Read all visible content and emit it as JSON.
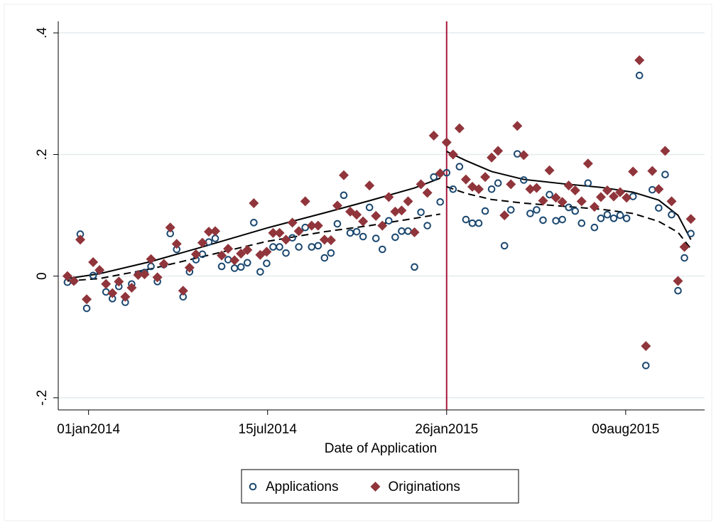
{
  "chart_data": {
    "type": "scatter",
    "x_label": "Date of Application",
    "x": [
      "2013-12-09",
      "2013-12-16",
      "2013-12-23",
      "2013-12-30",
      "2014-01-06",
      "2014-01-13",
      "2014-01-20",
      "2014-01-27",
      "2014-02-03",
      "2014-02-10",
      "2014-02-17",
      "2014-02-24",
      "2014-03-03",
      "2014-03-10",
      "2014-03-17",
      "2014-03-24",
      "2014-03-31",
      "2014-04-07",
      "2014-04-14",
      "2014-04-21",
      "2014-04-28",
      "2014-05-05",
      "2014-05-12",
      "2014-05-19",
      "2014-05-26",
      "2014-06-02",
      "2014-06-09",
      "2014-06-16",
      "2014-06-23",
      "2014-06-30",
      "2014-07-07",
      "2014-07-14",
      "2014-07-21",
      "2014-07-28",
      "2014-08-04",
      "2014-08-11",
      "2014-08-18",
      "2014-08-25",
      "2014-09-01",
      "2014-09-08",
      "2014-09-15",
      "2014-09-22",
      "2014-09-29",
      "2014-10-06",
      "2014-10-13",
      "2014-10-20",
      "2014-10-27",
      "2014-11-03",
      "2014-11-10",
      "2014-11-17",
      "2014-11-24",
      "2014-12-01",
      "2014-12-08",
      "2014-12-15",
      "2014-12-22",
      "2014-12-29",
      "2015-01-05",
      "2015-01-12",
      "2015-01-19",
      "2015-01-26",
      "2015-02-02",
      "2015-02-09",
      "2015-02-16",
      "2015-02-23",
      "2015-03-02",
      "2015-03-09",
      "2015-03-16",
      "2015-03-23",
      "2015-03-30",
      "2015-04-06",
      "2015-04-13",
      "2015-04-20",
      "2015-04-27",
      "2015-05-04",
      "2015-05-11",
      "2015-05-18",
      "2015-05-25",
      "2015-06-01",
      "2015-06-08",
      "2015-06-15",
      "2015-06-22",
      "2015-06-29",
      "2015-07-06",
      "2015-07-13",
      "2015-07-20",
      "2015-07-27",
      "2015-08-03",
      "2015-08-10",
      "2015-08-17",
      "2015-08-24",
      "2015-08-31",
      "2015-09-07",
      "2015-09-14",
      "2015-09-21",
      "2015-09-28",
      "2015-10-05",
      "2015-10-12",
      "2015-10-19"
    ],
    "series": [
      {
        "name": "Applications",
        "color": "#1a476f",
        "marker": "circle",
        "values": [
          -0.01,
          -0.008,
          0.069,
          -0.053,
          0.001,
          0.009,
          -0.026,
          -0.037,
          -0.017,
          -0.043,
          -0.013,
          0.003,
          0.006,
          0.016,
          -0.009,
          0.019,
          0.07,
          0.044,
          -0.034,
          0.007,
          0.027,
          0.036,
          0.056,
          0.062,
          0.016,
          0.027,
          0.013,
          0.015,
          0.022,
          0.088,
          0.007,
          0.021,
          0.048,
          0.048,
          0.038,
          0.063,
          0.048,
          0.08,
          0.048,
          0.05,
          0.03,
          0.038,
          0.086,
          0.133,
          0.071,
          0.073,
          0.065,
          0.113,
          0.062,
          0.044,
          0.091,
          0.064,
          0.074,
          0.074,
          0.015,
          0.105,
          0.083,
          0.163,
          0.122,
          0.17,
          0.143,
          0.18,
          0.093,
          0.087,
          0.087,
          0.107,
          0.143,
          0.153,
          0.05,
          0.109,
          0.201,
          0.158,
          0.103,
          0.109,
          0.092,
          0.134,
          0.091,
          0.093,
          0.113,
          0.107,
          0.087,
          0.153,
          0.08,
          0.095,
          0.101,
          0.095,
          0.1,
          0.095,
          0.131,
          0.33,
          -0.147,
          0.142,
          0.112,
          0.167,
          0.101,
          -0.024,
          0.03,
          0.07
        ]
      },
      {
        "name": "Originations",
        "color": "#90353b",
        "marker": "diamond",
        "values": [
          0.0,
          -0.008,
          0.06,
          -0.038,
          0.023,
          0.01,
          -0.013,
          -0.028,
          -0.009,
          -0.034,
          -0.019,
          0.002,
          0.003,
          0.028,
          -0.002,
          0.02,
          0.08,
          0.053,
          -0.024,
          0.014,
          0.036,
          0.055,
          0.073,
          0.074,
          0.034,
          0.045,
          0.026,
          0.037,
          0.043,
          0.12,
          0.035,
          0.04,
          0.071,
          0.071,
          0.06,
          0.088,
          0.074,
          0.123,
          0.083,
          0.083,
          0.06,
          0.059,
          0.116,
          0.166,
          0.106,
          0.101,
          0.09,
          0.149,
          0.099,
          0.083,
          0.13,
          0.106,
          0.108,
          0.123,
          0.072,
          0.151,
          0.137,
          0.231,
          0.169,
          0.22,
          0.2,
          0.243,
          0.159,
          0.147,
          0.143,
          0.163,
          0.195,
          0.206,
          0.1,
          0.151,
          0.247,
          0.199,
          0.143,
          0.145,
          0.124,
          0.174,
          0.129,
          0.122,
          0.149,
          0.141,
          0.123,
          0.185,
          0.114,
          0.13,
          0.141,
          0.131,
          0.138,
          0.129,
          0.172,
          0.355,
          -0.115,
          0.173,
          0.143,
          0.206,
          0.123,
          -0.008,
          0.048,
          0.094
        ]
      }
    ],
    "fits": [
      {
        "style": "solid",
        "color": "#000000",
        "x": [
          "2013-12-09",
          "2014-01-13",
          "2014-03-10",
          "2014-05-05",
          "2014-07-14",
          "2014-09-15",
          "2014-11-03",
          "2014-12-22",
          "2015-01-19"
        ],
        "values": [
          -0.004,
          0.004,
          0.024,
          0.048,
          0.079,
          0.104,
          0.124,
          0.145,
          0.161
        ]
      },
      {
        "style": "dashed",
        "color": "#000000",
        "x": [
          "2013-12-09",
          "2014-01-13",
          "2014-03-10",
          "2014-05-05",
          "2014-07-14",
          "2014-09-15",
          "2014-11-03",
          "2014-12-22",
          "2015-01-19"
        ],
        "values": [
          -0.008,
          -0.004,
          0.012,
          0.032,
          0.057,
          0.073,
          0.083,
          0.095,
          0.102
        ]
      },
      {
        "style": "solid",
        "color": "#000000",
        "x": [
          "2015-01-26",
          "2015-02-16",
          "2015-03-16",
          "2015-04-20",
          "2015-06-01",
          "2015-07-13",
          "2015-08-17",
          "2015-09-14",
          "2015-10-05",
          "2015-10-19"
        ],
        "values": [
          0.205,
          0.19,
          0.172,
          0.159,
          0.152,
          0.146,
          0.138,
          0.125,
          0.1,
          0.06
        ]
      },
      {
        "style": "dashed",
        "color": "#000000",
        "x": [
          "2015-01-26",
          "2015-02-16",
          "2015-03-16",
          "2015-04-20",
          "2015-06-01",
          "2015-07-13",
          "2015-08-17",
          "2015-09-14",
          "2015-10-05",
          "2015-10-19"
        ],
        "values": [
          0.147,
          0.136,
          0.126,
          0.12,
          0.115,
          0.11,
          0.103,
          0.09,
          0.072,
          0.045
        ]
      }
    ],
    "cutoff": "2015-01-26",
    "cutoff_color": "#a8183c",
    "xlim": [
      "2013-11-29",
      "2015-11-03"
    ],
    "xticks": [
      {
        "value": "2014-01-01",
        "label": "01jan2014"
      },
      {
        "value": "2014-07-15",
        "label": "15jul2014"
      },
      {
        "value": "2015-01-26",
        "label": "26jan2015"
      },
      {
        "value": "2015-08-09",
        "label": "09aug2015"
      }
    ],
    "ylim": [
      -0.22,
      0.419
    ],
    "yticks": [
      {
        "value": -0.2,
        "label": "-.2"
      },
      0,
      {
        "value": 0.2,
        "label": ".2"
      },
      {
        "value": 0.4,
        "label": ".4"
      }
    ],
    "grid": true,
    "legend": "bottom"
  }
}
